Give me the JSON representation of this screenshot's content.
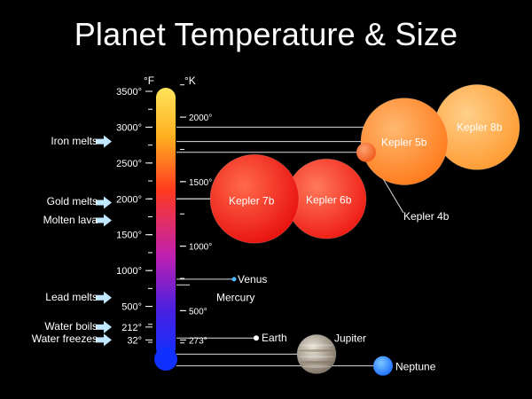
{
  "title": "Planet Temperature & Size",
  "units": {
    "fahrenheit": "°F",
    "kelvin": "°K"
  },
  "f_ticks": [
    {
      "label": "3500°",
      "value": 3500
    },
    {
      "label": "3000°",
      "value": 3000
    },
    {
      "label": "2500°",
      "value": 2500
    },
    {
      "label": "2000°",
      "value": 2000
    },
    {
      "label": "1500°",
      "value": 1500
    },
    {
      "label": "1000°",
      "value": 1000
    },
    {
      "label": "500°",
      "value": 500
    },
    {
      "label": "212°",
      "value": 212
    },
    {
      "label": "32°",
      "value": 32
    }
  ],
  "k_ticks": [
    {
      "label": "2000°",
      "value": 2000
    },
    {
      "label": "1500°",
      "value": 1500
    },
    {
      "label": "1000°",
      "value": 1000
    },
    {
      "label": "500°",
      "value": 500
    },
    {
      "label": "273°",
      "value": 273
    }
  ],
  "reference_points": [
    {
      "label": "Iron melts",
      "value_f": 2800
    },
    {
      "label": "Gold melts",
      "value_f": 1948
    },
    {
      "label": "Molten lava",
      "value_f": 1700
    },
    {
      "label": "Lead melts",
      "value_f": 621
    },
    {
      "label": "Water boils",
      "value_f": 212
    },
    {
      "label": "Water freezes",
      "value_f": 32
    }
  ],
  "planets": [
    {
      "name": "Kepler 8b",
      "value_f": 3000,
      "size": 4.7,
      "color": "#ffa640"
    },
    {
      "name": "Kepler 5b",
      "value_f": 2800,
      "size": 4.8,
      "color": "#ff8a30"
    },
    {
      "name": "Kepler 4b",
      "value_f": 2650,
      "size": 1.1,
      "color": "#ff6a30"
    },
    {
      "name": "Kepler 6b",
      "value_f": 2000,
      "size": 4.4,
      "color": "#ff3a2a"
    },
    {
      "name": "Kepler 7b",
      "value_f": 2000,
      "size": 4.9,
      "color": "#ff2a22"
    },
    {
      "name": "Venus",
      "value_f": 880,
      "size": 0.25,
      "color": "#4fb8ff"
    },
    {
      "name": "Mercury",
      "value_f": 800,
      "size": 0,
      "color": "#4fb8ff"
    },
    {
      "name": "Earth",
      "value_f": 59,
      "size": 0.28,
      "color": "#ffffff"
    },
    {
      "name": "Jupiter",
      "value_f": -166,
      "size": 2.1,
      "color": "#b8ac98"
    },
    {
      "name": "Neptune",
      "value_f": -330,
      "size": 1.0,
      "color": "#2a8cff"
    }
  ],
  "colors": {
    "background": "#000000",
    "thermo_top": "#ffd700",
    "thermo_mid": "#ff3020",
    "thermo_low": "#9020d0",
    "thermo_bottom": "#1030ff",
    "arrow": "#bfe7ff"
  }
}
